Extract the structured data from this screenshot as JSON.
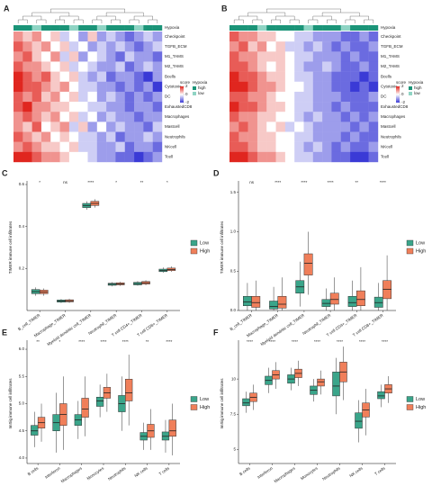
{
  "chart_data": [
    {
      "type": "heatmap",
      "panel": "A",
      "annotation_label": "Hypoxia",
      "annotation": [
        "high",
        "high",
        "low",
        "high",
        "high",
        "high",
        "low",
        "high",
        "high",
        "low",
        "high",
        "high",
        "high",
        "low",
        "high",
        "high"
      ],
      "rows": [
        "Checkpoint",
        "TGFB_ECM",
        "M1_TAMS",
        "M2_TAMS",
        "Bcells",
        "Cytotoxic",
        "DC",
        "ExhaustedCD8",
        "Macrophages",
        "Mastcell",
        "Neutrophils",
        "NKcell",
        "Tcell"
      ],
      "values": [
        [
          1,
          0.5,
          1,
          0,
          0.5,
          -0.5,
          0,
          -1,
          0.5,
          -1,
          -0.5,
          -1,
          -1.5,
          -1,
          -0.5,
          -1
        ],
        [
          1.5,
          1,
          0.5,
          1,
          0,
          0.5,
          -0.5,
          0,
          -1,
          -0.5,
          -1,
          -0.5,
          -1,
          -1.5,
          -1,
          -0.5
        ],
        [
          1,
          1.5,
          0.5,
          0,
          1,
          -0.5,
          0.5,
          -1,
          0,
          -0.5,
          -1,
          -1.5,
          -0.5,
          -1,
          -1,
          -1.5
        ],
        [
          1.5,
          1,
          1,
          0.5,
          0,
          0.5,
          -0.5,
          0,
          -0.5,
          -1,
          -1,
          -0.5,
          -1.5,
          -1,
          -0.5,
          -1
        ],
        [
          2,
          1.5,
          1,
          1.5,
          0.5,
          0,
          0.5,
          -0.5,
          -1,
          -0.5,
          -1.5,
          -1,
          -1,
          -1.5,
          -2,
          -1
        ],
        [
          2,
          1.5,
          1.5,
          1,
          0.5,
          1,
          0,
          -0.5,
          -0.5,
          -1,
          -1,
          -1.5,
          -1,
          -1.5,
          -1,
          -2
        ],
        [
          1.5,
          1,
          1.5,
          0.5,
          1,
          0,
          0.5,
          -0.5,
          0,
          -1,
          -0.5,
          -1,
          -1.5,
          -1,
          -1.5,
          -1
        ],
        [
          1.5,
          2,
          1,
          1,
          0.5,
          0.5,
          0,
          0,
          -0.5,
          -0.5,
          -1,
          -1,
          -1.5,
          -1,
          -1,
          -1.5
        ],
        [
          1,
          1.5,
          1,
          0.5,
          1,
          0,
          0.5,
          -0.5,
          0,
          -1,
          -0.5,
          -1,
          -1,
          -1.5,
          -1,
          -1
        ],
        [
          1,
          0.5,
          1.5,
          0,
          0.5,
          1,
          -0.5,
          0.5,
          -1,
          0,
          -1,
          -0.5,
          -1,
          -1,
          -1.5,
          -0.5
        ],
        [
          1.5,
          1,
          0.5,
          1,
          0,
          0.5,
          0,
          -0.5,
          -0.5,
          -1,
          -0.5,
          -1.5,
          -1,
          -1,
          -0.5,
          -1
        ],
        [
          1,
          1.5,
          1,
          0.5,
          0.5,
          0,
          0.5,
          -0.5,
          -0.5,
          -1,
          -1,
          -0.5,
          -1.5,
          -1,
          -1,
          -1.5
        ],
        [
          2,
          2,
          1.5,
          1,
          1,
          0.5,
          0,
          0,
          -0.5,
          -1,
          -1,
          -1.5,
          -1.5,
          -2,
          -1.5,
          -1
        ]
      ],
      "score_title": "score",
      "score_ticks": [
        2,
        0,
        -2
      ],
      "colors": {
        "low": "#3a3ad6",
        "mid": "#ffffff",
        "high": "#e0261f"
      },
      "levels_title": "Hypoxia",
      "levels": [
        "high",
        "low"
      ],
      "level_colors": [
        "#1b9478",
        "#8fd4c4"
      ]
    },
    {
      "type": "heatmap",
      "panel": "B",
      "annotation_label": "Hypoxia",
      "annotation": [
        "high",
        "high",
        "high",
        "low",
        "high",
        "high",
        "high",
        "high",
        "low",
        "high",
        "high",
        "high",
        "low",
        "high",
        "high",
        "high"
      ],
      "rows": [
        "Checkpoint",
        "TGFB_ECM",
        "M1_TAMS",
        "M2_TAMS",
        "Bcells",
        "Cytotoxic",
        "DC",
        "ExhaustedCD8",
        "Macrophages",
        "Mastcell",
        "Neutrophils",
        "NKcell",
        "Tcell"
      ],
      "values": [
        [
          1.5,
          1,
          1,
          0.5,
          0.5,
          0,
          0,
          -0.5,
          -0.5,
          -1,
          -1,
          -1,
          -1.5,
          -1.5,
          -1,
          -1.5
        ],
        [
          1,
          1.5,
          0.5,
          1,
          0,
          0.5,
          -0.5,
          -0.5,
          -1,
          -0.5,
          -1,
          -1.5,
          -1,
          -1.5,
          -1.5,
          -1
        ],
        [
          1.5,
          1,
          1,
          0.5,
          0.5,
          0.5,
          0,
          -0.5,
          -0.5,
          -1,
          -1,
          -1,
          -1.5,
          -1,
          -1.5,
          -1.5
        ],
        [
          1.5,
          1.5,
          1,
          0.5,
          0,
          0.5,
          0,
          -0.5,
          -1,
          -1,
          -0.5,
          -1,
          -1.5,
          -1.5,
          -1,
          -1.5
        ],
        [
          2,
          1.5,
          1.5,
          1,
          0.5,
          0.5,
          0,
          -0.5,
          -0.5,
          -1,
          -1,
          -1.5,
          -1.5,
          -1.5,
          -2,
          -1.5
        ],
        [
          2,
          2,
          1.5,
          1,
          1,
          0.5,
          0,
          0,
          -0.5,
          -1,
          -1,
          -1.5,
          -1.5,
          -2,
          -1.5,
          -2
        ],
        [
          1.5,
          1.5,
          1,
          1,
          0.5,
          0,
          0,
          -0.5,
          -0.5,
          -1,
          -1,
          -1,
          -1.5,
          -1.5,
          -1.5,
          -1
        ],
        [
          2,
          1.5,
          1.5,
          1,
          0.5,
          0.5,
          0,
          -0.5,
          -0.5,
          -1,
          -1,
          -1.5,
          -1,
          -1.5,
          -1.5,
          -1.5
        ],
        [
          1.5,
          1,
          1,
          0.5,
          0.5,
          0,
          0,
          -0.5,
          -1,
          -0.5,
          -1,
          -1,
          -1.5,
          -1,
          -1.5,
          -1
        ],
        [
          1,
          1.5,
          1,
          0.5,
          0,
          0.5,
          -0.5,
          0,
          -0.5,
          -1,
          -1,
          -1,
          -1,
          -1.5,
          -1,
          -1.5
        ],
        [
          1.5,
          1,
          1,
          0.5,
          0.5,
          0,
          0,
          -0.5,
          -0.5,
          -1,
          -1,
          -1,
          -1.5,
          -1,
          -1.5,
          -1.5
        ],
        [
          1.5,
          1.5,
          1,
          0.5,
          0.5,
          0,
          0,
          -0.5,
          -1,
          -0.5,
          -1,
          -1.5,
          -1,
          -1.5,
          -1.5,
          -1
        ],
        [
          2,
          2,
          1.5,
          1,
          1,
          0.5,
          0,
          -0.5,
          -0.5,
          -1,
          -1,
          -1.5,
          -1.5,
          -2,
          -2,
          -1.5
        ]
      ],
      "score_title": "score",
      "score_ticks": [
        2,
        0,
        -2
      ],
      "colors": {
        "low": "#3a3ad6",
        "mid": "#ffffff",
        "high": "#e0261f"
      },
      "levels_title": "Hypoxia",
      "levels": [
        "high",
        "low"
      ],
      "level_colors": [
        "#1b9478",
        "#8fd4c4"
      ]
    },
    {
      "type": "box",
      "panel": "C",
      "ylabel": "TIMER immune cell infiltrates",
      "categories": [
        "B_cell_TIMER",
        "Macrophage_TIMER",
        "Myeloid dendritic cell_TIMER",
        "Neutrophil_TIMER",
        "T cell CD4+_TIMER",
        "T cell CD8+_TIMER"
      ],
      "significance": [
        "*",
        "ns",
        "****",
        "*",
        "**",
        "*"
      ],
      "ylim": [
        0,
        0.6
      ],
      "yticks": [
        0.2,
        0.4,
        0.6
      ],
      "legend": "right",
      "series": [
        {
          "name": "Low",
          "color": "#3aa58a",
          "low": [
            0.07,
            0.035,
            0.48,
            0.115,
            0.118,
            0.18
          ],
          "q1": [
            0.08,
            0.04,
            0.49,
            0.12,
            0.122,
            0.185
          ],
          "median": [
            0.09,
            0.045,
            0.5,
            0.125,
            0.128,
            0.19
          ],
          "q3": [
            0.1,
            0.05,
            0.51,
            0.13,
            0.134,
            0.197
          ],
          "high": [
            0.11,
            0.055,
            0.52,
            0.135,
            0.14,
            0.205
          ]
        },
        {
          "name": "High",
          "color": "#f07f5a",
          "low": [
            0.07,
            0.036,
            0.49,
            0.117,
            0.12,
            0.184
          ],
          "q1": [
            0.08,
            0.041,
            0.5,
            0.122,
            0.126,
            0.19
          ],
          "median": [
            0.088,
            0.046,
            0.51,
            0.127,
            0.132,
            0.195
          ],
          "q3": [
            0.097,
            0.051,
            0.52,
            0.132,
            0.138,
            0.202
          ],
          "high": [
            0.105,
            0.056,
            0.53,
            0.137,
            0.144,
            0.21
          ]
        }
      ]
    },
    {
      "type": "box",
      "panel": "D",
      "ylabel": "TIMER immune cell infiltrates",
      "categories": [
        "B_cell_TIMER",
        "Macrophage_TIMER",
        "Myeloid dendritic cell_TIMER",
        "Neutrophil_TIMER",
        "T cell CD4+_TIMER",
        "T cell CD8+_TIMER"
      ],
      "significance": [
        "ns",
        "****",
        "****",
        "****",
        "**",
        "****"
      ],
      "ylim": [
        0,
        1.6
      ],
      "yticks": [
        {
          "value": 0,
          "label": "0.0"
        },
        0.5,
        {
          "value": 1,
          "label": "1.0"
        },
        1.5
      ],
      "legend": "right",
      "series": [
        {
          "name": "Low",
          "color": "#3aa58a",
          "low": [
            0,
            0,
            0.05,
            0,
            0,
            0
          ],
          "q1": [
            0.06,
            0.02,
            0.22,
            0.05,
            0.05,
            0.04
          ],
          "median": [
            0.11,
            0.05,
            0.3,
            0.09,
            0.1,
            0.1
          ],
          "q3": [
            0.18,
            0.12,
            0.38,
            0.14,
            0.18,
            0.17
          ],
          "high": [
            0.35,
            0.3,
            0.62,
            0.28,
            0.38,
            0.35
          ]
        },
        {
          "name": "High",
          "color": "#f07f5a",
          "low": [
            0,
            0,
            0.2,
            0,
            0,
            0
          ],
          "q1": [
            0.04,
            0.03,
            0.45,
            0.08,
            0.06,
            0.15
          ],
          "median": [
            0.1,
            0.08,
            0.6,
            0.14,
            0.14,
            0.27
          ],
          "q3": [
            0.18,
            0.18,
            0.72,
            0.22,
            0.25,
            0.38
          ],
          "high": [
            0.38,
            0.42,
            1.0,
            0.42,
            0.55,
            0.7
          ]
        }
      ]
    },
    {
      "type": "box",
      "panel": "E",
      "ylabel": "ImSig immune cell infiltrates",
      "categories": [
        "B cells",
        "Interferon",
        "Macrophages",
        "Monocytes",
        "Neutrophils",
        "NK cells",
        "T cells"
      ],
      "significance": [
        "**",
        "*",
        "****",
        "****",
        "****",
        "**",
        "****"
      ],
      "ylim": [
        3.9,
        6.1
      ],
      "yticks": [
        {
          "value": 4,
          "label": "4.0"
        },
        4.5,
        {
          "value": 5,
          "label": "5.0"
        },
        5.5,
        {
          "value": 6,
          "label": "6.0"
        }
      ],
      "legend": "right",
      "series": [
        {
          "name": "Low",
          "color": "#3aa58a",
          "low": [
            4.2,
            4.1,
            4.35,
            4.75,
            4.5,
            4.15,
            4.1
          ],
          "q1": [
            4.42,
            4.5,
            4.6,
            4.95,
            4.85,
            4.33,
            4.33
          ],
          "median": [
            4.5,
            4.65,
            4.7,
            5.05,
            5.0,
            4.4,
            4.4
          ],
          "q3": [
            4.6,
            4.8,
            4.8,
            5.12,
            5.15,
            4.47,
            4.48
          ],
          "high": [
            4.85,
            5.2,
            5.05,
            5.35,
            5.5,
            4.65,
            4.7
          ]
        },
        {
          "name": "High",
          "color": "#f07f5a",
          "low": [
            4.3,
            4.15,
            4.4,
            4.85,
            4.6,
            4.15,
            4.05
          ],
          "q1": [
            4.55,
            4.6,
            4.75,
            5.1,
            5.05,
            4.38,
            4.4
          ],
          "median": [
            4.65,
            4.8,
            4.9,
            5.2,
            5.2,
            4.5,
            4.5
          ],
          "q3": [
            4.75,
            5.0,
            5.1,
            5.3,
            5.45,
            4.62,
            4.7
          ],
          "high": [
            5.0,
            5.5,
            5.5,
            5.55,
            5.9,
            4.9,
            5.0
          ]
        }
      ]
    },
    {
      "type": "box",
      "panel": "F",
      "ylabel": "ImSig immune cell infiltrates",
      "categories": [
        "B cells",
        "Interferon",
        "Macrophages",
        "Monocytes",
        "Neutrophils",
        "NK cells",
        "T cells"
      ],
      "significance": [
        "****",
        "****",
        "****",
        "****",
        "****",
        "****",
        "****"
      ],
      "ylim": [
        4,
        12.5
      ],
      "yticks": [
        5,
        7.5,
        10
      ],
      "legend": "right",
      "series": [
        {
          "name": "Low",
          "color": "#3aa58a",
          "low": [
            7.6,
            9.0,
            9.2,
            8.4,
            7.5,
            5.5,
            8.0
          ],
          "q1": [
            8.1,
            9.6,
            9.7,
            8.9,
            8.8,
            6.5,
            8.6
          ],
          "median": [
            8.3,
            9.9,
            10.0,
            9.2,
            9.5,
            7.0,
            8.8
          ],
          "q3": [
            8.6,
            10.2,
            10.3,
            9.5,
            10.5,
            7.6,
            9.1
          ],
          "high": [
            9.1,
            10.8,
            10.8,
            10.0,
            11.5,
            8.5,
            9.6
          ]
        },
        {
          "name": "High",
          "color": "#f07f5a",
          "low": [
            7.8,
            9.3,
            9.5,
            8.9,
            8.5,
            6.0,
            8.3
          ],
          "q1": [
            8.4,
            10.0,
            10.1,
            9.5,
            9.8,
            7.3,
            9.0
          ],
          "median": [
            8.7,
            10.3,
            10.4,
            9.8,
            10.5,
            7.8,
            9.3
          ],
          "q3": [
            9.0,
            10.6,
            10.7,
            10.0,
            11.2,
            8.3,
            9.6
          ],
          "high": [
            9.6,
            11.2,
            11.3,
            10.6,
            12.3,
            9.3,
            10.2
          ]
        }
      ]
    }
  ]
}
